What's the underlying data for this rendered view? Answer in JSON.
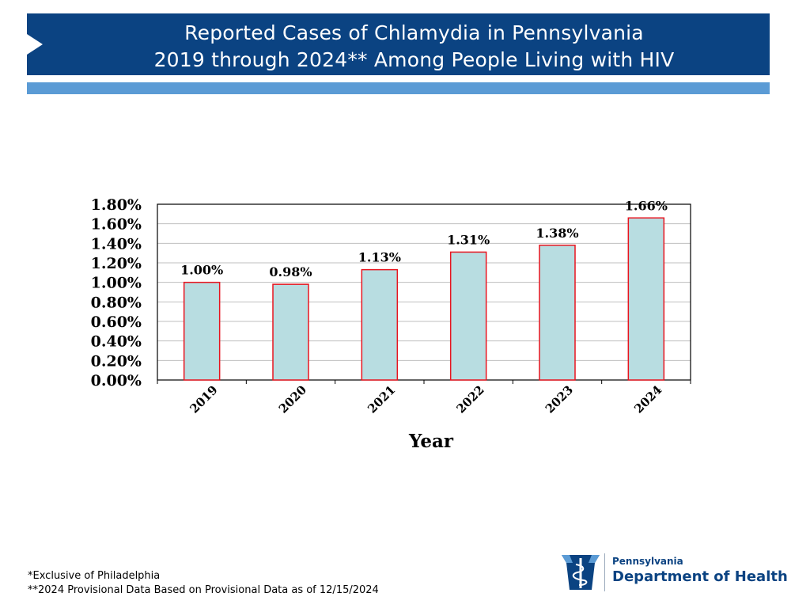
{
  "header": {
    "title_line1": "Reported Cases of Chlamydia in Pennsylvania",
    "title_line2": "2019 through 2024** Among People Living with HIV"
  },
  "colors": {
    "header_bg": "#0b4382",
    "accent_bar": "#5b9bd5",
    "bar_fill": "#b8dde1",
    "bar_stroke": "#e8141e",
    "grid": "#bfbfbf"
  },
  "chart_data": {
    "type": "bar",
    "categories": [
      "2019",
      "2020",
      "2021",
      "2022",
      "2023",
      "2024"
    ],
    "values": [
      1.0,
      0.98,
      1.13,
      1.31,
      1.38,
      1.66
    ],
    "data_labels": [
      "1.00%",
      "0.98%",
      "1.13%",
      "1.31%",
      "1.38%",
      "1.66%"
    ],
    "title": "",
    "xlabel": "Year",
    "ylabel": "",
    "ylim": [
      0,
      1.8
    ],
    "yticks": [
      0,
      0.2,
      0.4,
      0.6,
      0.8,
      1.0,
      1.2,
      1.4,
      1.6,
      1.8
    ],
    "ytick_labels": [
      "0.00%",
      "0.20%",
      "0.40%",
      "0.60%",
      "0.80%",
      "1.00%",
      "1.20%",
      "1.40%",
      "1.60%",
      "1.80%"
    ],
    "grid": true,
    "legend": "none"
  },
  "footnotes": {
    "line1": "*Exclusive of Philadelphia",
    "line2": "**2024 Provisional Data Based on Provisional Data as of 12/15/2024"
  },
  "logo": {
    "small_text": "Pennsylvania",
    "big_text": "Department of Health",
    "icon": "keystone-caduceus-icon"
  }
}
